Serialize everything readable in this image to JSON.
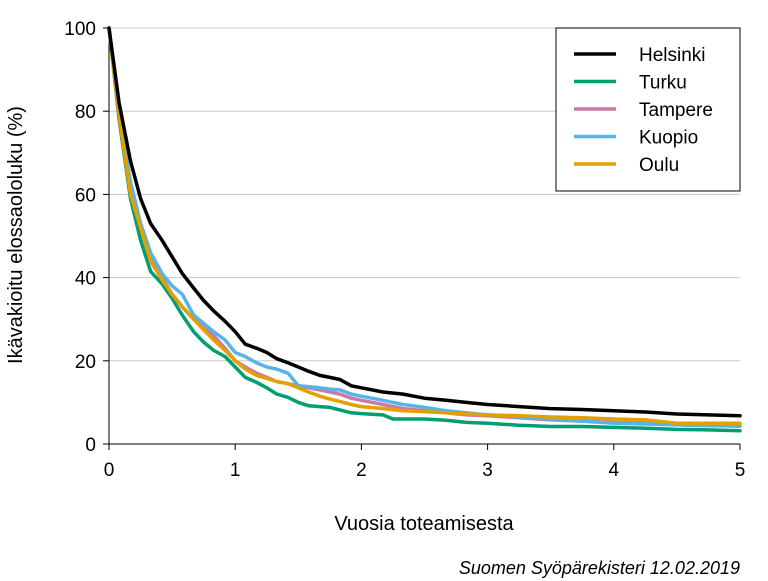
{
  "chart_data": {
    "type": "line",
    "title": "",
    "xlabel": "Vuosia toteamisesta",
    "ylabel": "Ikävakioitu elossaololuku (%)",
    "xlim": [
      0,
      5
    ],
    "ylim": [
      0,
      100
    ],
    "xticks": [
      "0",
      "1",
      "2",
      "3",
      "4",
      "5"
    ],
    "yticks": [
      "0",
      "20",
      "40",
      "60",
      "80",
      "100"
    ],
    "grid": "horizontal",
    "legend_position": "top-right",
    "source": "Suomen Syöpärekisteri 12.02.2019",
    "series": [
      {
        "name": "Helsinki",
        "color": "#000000",
        "points": [
          [
            0,
            100
          ],
          [
            0.08,
            82
          ],
          [
            0.17,
            68
          ],
          [
            0.25,
            59
          ],
          [
            0.33,
            53
          ],
          [
            0.42,
            49
          ],
          [
            0.5,
            45
          ],
          [
            0.58,
            41
          ],
          [
            0.67,
            37.5
          ],
          [
            0.75,
            34.5
          ],
          [
            0.83,
            32
          ],
          [
            0.92,
            29.5
          ],
          [
            1.0,
            27
          ],
          [
            1.08,
            24
          ],
          [
            1.17,
            23
          ],
          [
            1.25,
            22
          ],
          [
            1.33,
            20.5
          ],
          [
            1.42,
            19.5
          ],
          [
            1.5,
            18.5
          ],
          [
            1.58,
            17.5
          ],
          [
            1.67,
            16.5
          ],
          [
            1.75,
            16
          ],
          [
            1.83,
            15.5
          ],
          [
            1.92,
            14
          ],
          [
            2.0,
            13.5
          ],
          [
            2.17,
            12.5
          ],
          [
            2.33,
            12
          ],
          [
            2.5,
            11
          ],
          [
            2.67,
            10.5
          ],
          [
            2.83,
            10
          ],
          [
            3.0,
            9.5
          ],
          [
            3.25,
            9
          ],
          [
            3.5,
            8.5
          ],
          [
            3.75,
            8.3
          ],
          [
            4.0,
            8
          ],
          [
            4.25,
            7.7
          ],
          [
            4.5,
            7.2
          ],
          [
            4.75,
            7
          ],
          [
            5.0,
            6.8
          ]
        ]
      },
      {
        "name": "Turku",
        "color": "#009e73",
        "points": [
          [
            0,
            100
          ],
          [
            0.08,
            78
          ],
          [
            0.17,
            59
          ],
          [
            0.25,
            49
          ],
          [
            0.33,
            41.5
          ],
          [
            0.42,
            38.5
          ],
          [
            0.5,
            35
          ],
          [
            0.58,
            31
          ],
          [
            0.67,
            27
          ],
          [
            0.75,
            24.5
          ],
          [
            0.83,
            22.5
          ],
          [
            0.92,
            21
          ],
          [
            1.0,
            18.5
          ],
          [
            1.08,
            16
          ],
          [
            1.17,
            14.8
          ],
          [
            1.25,
            13.5
          ],
          [
            1.33,
            12
          ],
          [
            1.42,
            11.2
          ],
          [
            1.5,
            10
          ],
          [
            1.58,
            9.2
          ],
          [
            1.67,
            9
          ],
          [
            1.75,
            8.8
          ],
          [
            1.83,
            8.2
          ],
          [
            1.92,
            7.5
          ],
          [
            2.0,
            7.3
          ],
          [
            2.17,
            7
          ],
          [
            2.25,
            6
          ],
          [
            2.5,
            6
          ],
          [
            2.67,
            5.7
          ],
          [
            2.83,
            5.2
          ],
          [
            3.0,
            5
          ],
          [
            3.25,
            4.5
          ],
          [
            3.5,
            4.2
          ],
          [
            3.75,
            4.2
          ],
          [
            4.0,
            4
          ],
          [
            4.25,
            3.8
          ],
          [
            4.5,
            3.5
          ],
          [
            4.75,
            3.4
          ],
          [
            5.0,
            3.2
          ]
        ]
      },
      {
        "name": "Tampere",
        "color": "#cc79a7",
        "points": [
          [
            0,
            100
          ],
          [
            0.08,
            80
          ],
          [
            0.17,
            62
          ],
          [
            0.25,
            52
          ],
          [
            0.33,
            45
          ],
          [
            0.42,
            40
          ],
          [
            0.5,
            36
          ],
          [
            0.58,
            33
          ],
          [
            0.67,
            30
          ],
          [
            0.75,
            28
          ],
          [
            0.83,
            26
          ],
          [
            0.92,
            23
          ],
          [
            1.0,
            20
          ],
          [
            1.08,
            18.5
          ],
          [
            1.17,
            17
          ],
          [
            1.25,
            16
          ],
          [
            1.33,
            15
          ],
          [
            1.42,
            14.5
          ],
          [
            1.5,
            14
          ],
          [
            1.58,
            13.5
          ],
          [
            1.67,
            13
          ],
          [
            1.75,
            12.5
          ],
          [
            1.83,
            12
          ],
          [
            1.92,
            11
          ],
          [
            2.0,
            10.5
          ],
          [
            2.17,
            9.5
          ],
          [
            2.33,
            8.5
          ],
          [
            2.5,
            8
          ],
          [
            2.67,
            7.5
          ],
          [
            2.83,
            7
          ],
          [
            3.0,
            6.8
          ],
          [
            3.25,
            6.3
          ],
          [
            3.5,
            5.8
          ],
          [
            3.75,
            5.5
          ],
          [
            4.0,
            5.2
          ],
          [
            4.25,
            5
          ],
          [
            4.5,
            4.8
          ],
          [
            4.75,
            4.5
          ],
          [
            5.0,
            4.3
          ]
        ]
      },
      {
        "name": "Kuopio",
        "color": "#56b4e9",
        "points": [
          [
            0,
            100
          ],
          [
            0.08,
            80
          ],
          [
            0.17,
            63
          ],
          [
            0.25,
            53
          ],
          [
            0.33,
            46
          ],
          [
            0.42,
            41
          ],
          [
            0.5,
            38
          ],
          [
            0.58,
            36
          ],
          [
            0.67,
            31
          ],
          [
            0.75,
            29
          ],
          [
            0.83,
            27
          ],
          [
            0.92,
            25
          ],
          [
            1.0,
            22
          ],
          [
            1.08,
            21
          ],
          [
            1.17,
            19.5
          ],
          [
            1.25,
            18.5
          ],
          [
            1.33,
            18
          ],
          [
            1.42,
            17
          ],
          [
            1.5,
            14
          ],
          [
            1.58,
            13.8
          ],
          [
            1.67,
            13.5
          ],
          [
            1.75,
            13.2
          ],
          [
            1.83,
            13
          ],
          [
            1.92,
            12
          ],
          [
            2.0,
            11.5
          ],
          [
            2.17,
            10.5
          ],
          [
            2.33,
            9.5
          ],
          [
            2.5,
            8.8
          ],
          [
            2.67,
            8
          ],
          [
            2.83,
            7.5
          ],
          [
            3.0,
            7
          ],
          [
            3.25,
            6.5
          ],
          [
            3.5,
            6
          ],
          [
            3.75,
            5.5
          ],
          [
            4.0,
            5
          ],
          [
            4.25,
            4.8
          ],
          [
            4.5,
            4.6
          ],
          [
            4.75,
            4.4
          ],
          [
            5.0,
            4.3
          ]
        ]
      },
      {
        "name": "Oulu",
        "color": "#e69f00",
        "points": [
          [
            0,
            100
          ],
          [
            0.08,
            79
          ],
          [
            0.17,
            60
          ],
          [
            0.25,
            52
          ],
          [
            0.33,
            44
          ],
          [
            0.42,
            39.5
          ],
          [
            0.5,
            36
          ],
          [
            0.58,
            33
          ],
          [
            0.67,
            30
          ],
          [
            0.75,
            27.5
          ],
          [
            0.83,
            25
          ],
          [
            0.92,
            22.5
          ],
          [
            1.0,
            20
          ],
          [
            1.08,
            18
          ],
          [
            1.17,
            16.5
          ],
          [
            1.25,
            15.8
          ],
          [
            1.33,
            15
          ],
          [
            1.42,
            14.5
          ],
          [
            1.5,
            13.5
          ],
          [
            1.58,
            12.5
          ],
          [
            1.67,
            11.5
          ],
          [
            1.75,
            10.8
          ],
          [
            1.83,
            10.2
          ],
          [
            1.92,
            9.5
          ],
          [
            2.0,
            9
          ],
          [
            2.17,
            8.5
          ],
          [
            2.33,
            8
          ],
          [
            2.5,
            7.8
          ],
          [
            2.67,
            7.5
          ],
          [
            2.83,
            7.2
          ],
          [
            3.0,
            7
          ],
          [
            3.25,
            6.8
          ],
          [
            3.5,
            6.5
          ],
          [
            3.75,
            6.3
          ],
          [
            4.0,
            6
          ],
          [
            4.25,
            5.8
          ],
          [
            4.5,
            5
          ],
          [
            4.75,
            5
          ],
          [
            5.0,
            5
          ]
        ]
      }
    ]
  }
}
